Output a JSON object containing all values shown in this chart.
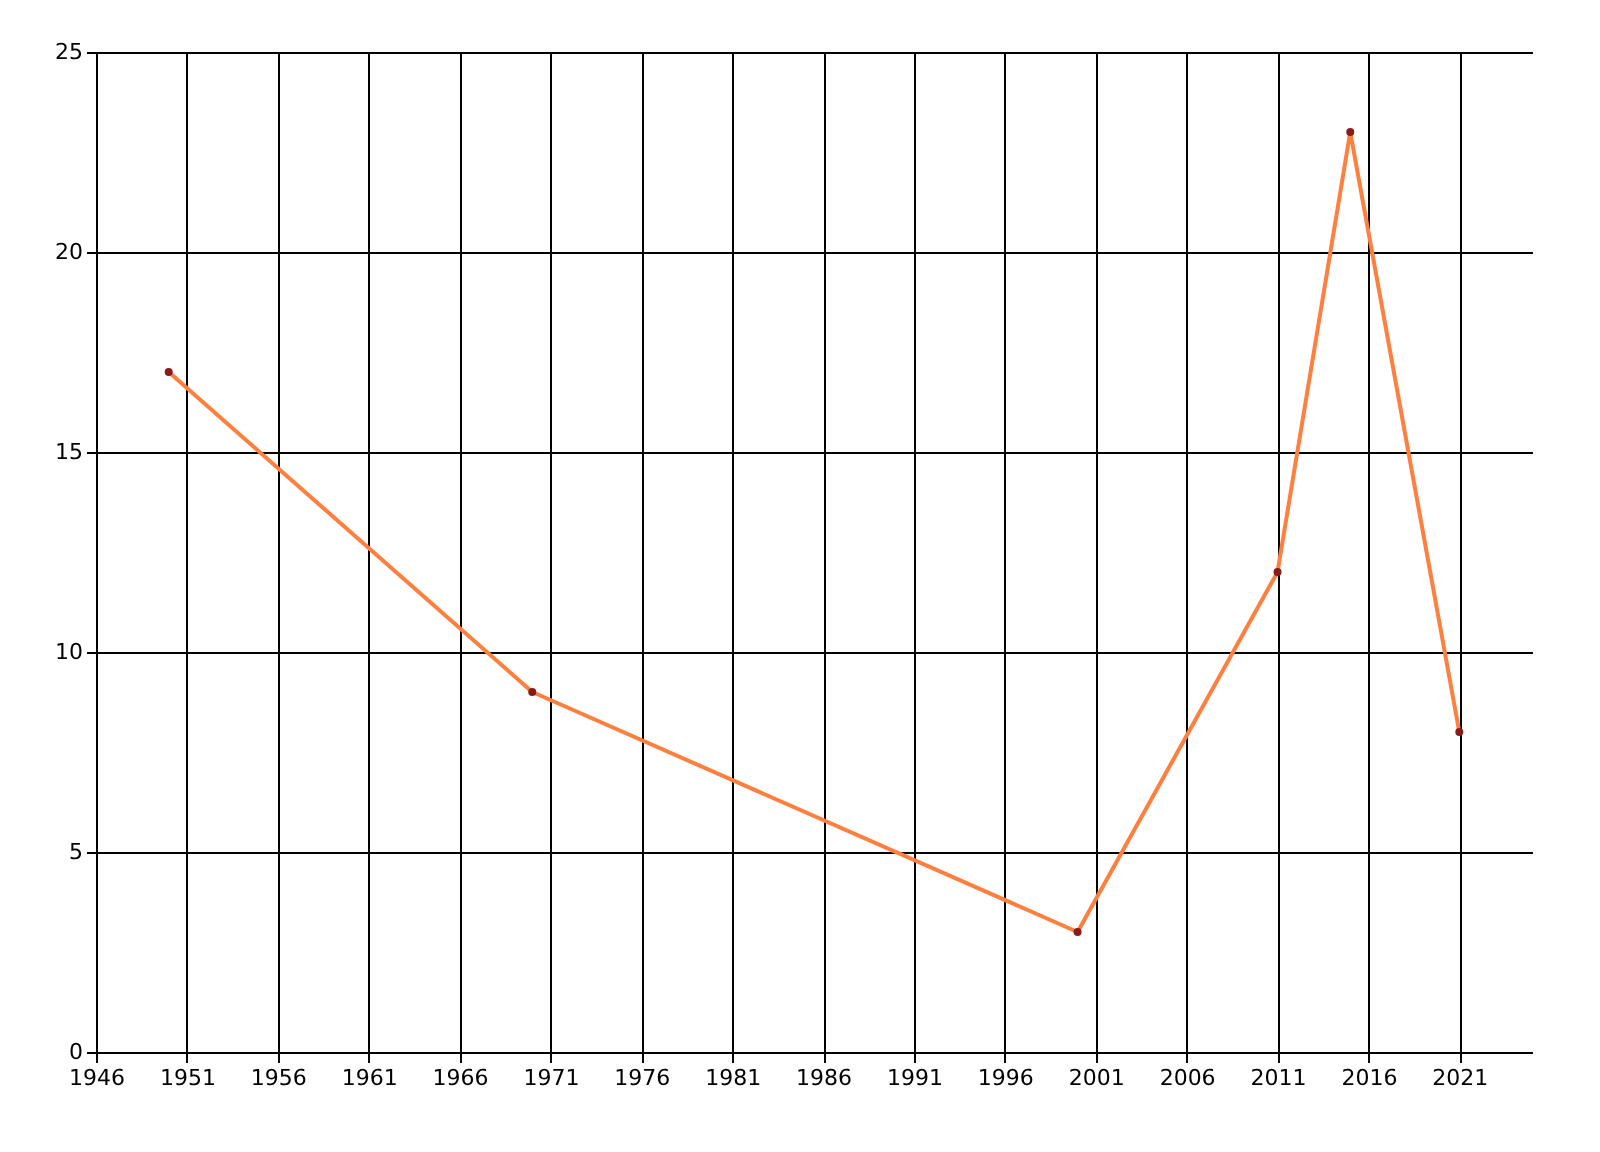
{
  "chart_data": {
    "type": "line",
    "x": [
      1950,
      1970,
      2000,
      2011,
      2015,
      2021
    ],
    "series": [
      {
        "color": "#ff7f3f",
        "values": [
          17,
          9,
          3,
          12,
          23,
          8
        ]
      }
    ],
    "xlim": [
      1946,
      2025
    ],
    "xticks": [
      1946,
      1951,
      1956,
      1961,
      1966,
      1971,
      1976,
      1981,
      1986,
      1991,
      1996,
      2001,
      2006,
      2011,
      2016,
      2021
    ],
    "ylim": [
      0,
      25
    ],
    "yticks": [
      0,
      5,
      10,
      15,
      20,
      25
    ],
    "grid": true,
    "marker": "circle",
    "line_style": "solid"
  }
}
